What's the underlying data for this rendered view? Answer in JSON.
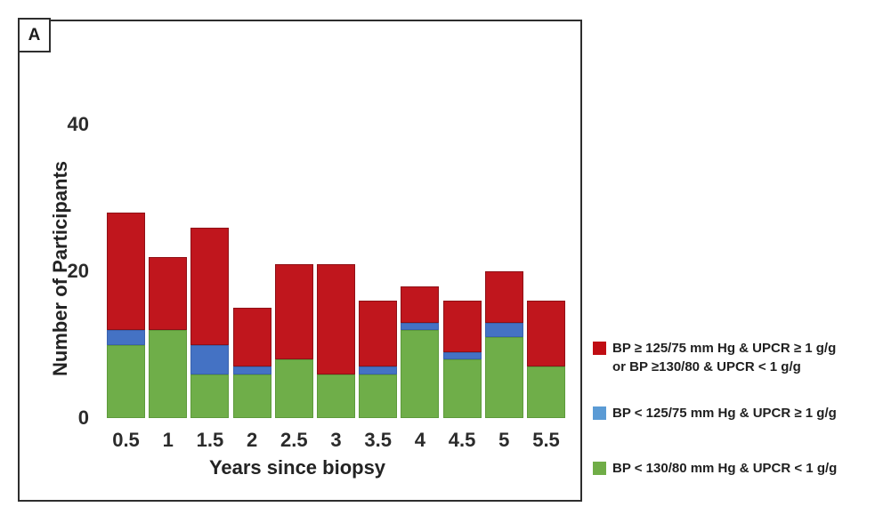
{
  "panel_label": "A",
  "chart_data": {
    "type": "bar",
    "stacked": true,
    "xlabel": "Years since biopsy",
    "ylabel": "Number of Participants",
    "categories": [
      "0.5",
      "1",
      "1.5",
      "2",
      "2.5",
      "3",
      "3.5",
      "4",
      "4.5",
      "5",
      "5.5"
    ],
    "ylim": [
      0,
      40
    ],
    "yticks": [
      0,
      20,
      40
    ],
    "grid": false,
    "legend_position": "right",
    "series": [
      {
        "name": "BP < 130/80 mm Hg & UPCR < 1 g/g",
        "color": "#6fae49",
        "edge_color": "#5d9a3b",
        "values": [
          10,
          12,
          6,
          6,
          8,
          6,
          6,
          12,
          8,
          11,
          7
        ]
      },
      {
        "name": "BP < 125/75 mm Hg & UPCR ≥ 1 g/g",
        "color": "#4472c4",
        "edge_color": "#3a62ad",
        "values": [
          2,
          0,
          4,
          1,
          0,
          0,
          1,
          1,
          1,
          2,
          0
        ]
      },
      {
        "name": "BP ≥ 125/75 mm Hg & UPCR ≥ 1 g/g or BP ≥130/80 & UPCR < 1 g/g",
        "color": "#c0161d",
        "edge_color": "#8f1016",
        "values": [
          16,
          10,
          16,
          8,
          13,
          15,
          9,
          5,
          7,
          7,
          9
        ]
      }
    ]
  },
  "legend": {
    "entries": [
      {
        "swatch_color": "#c00d13",
        "lines": [
          "BP ≥ 125/75 mm Hg & UPCR ≥ 1 g/g",
          "or BP ≥130/80 & UPCR < 1 g/g"
        ]
      },
      {
        "swatch_color": "#5b9bd5",
        "lines": [
          "BP < 125/75 mm Hg & UPCR ≥ 1 g/g"
        ]
      },
      {
        "swatch_color": "#70ad47",
        "lines": [
          "BP < 130/80 mm Hg & UPCR < 1 g/g"
        ]
      }
    ]
  }
}
